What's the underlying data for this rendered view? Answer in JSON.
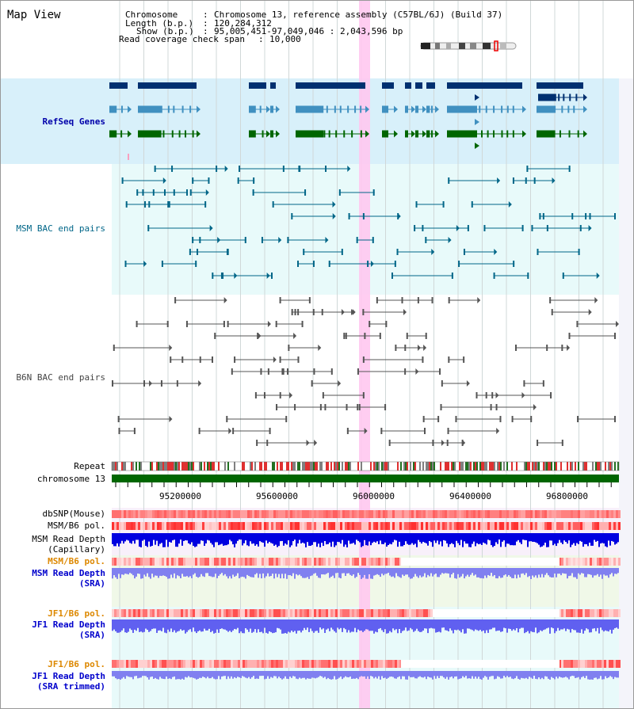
{
  "title": "Map View",
  "info": {
    "chromosome_label": "Chromosome",
    "chromosome_value": "Chromosome 13, reference assembly (C57BL/6J) (Build 37)",
    "length_label": "Length (b.p.)",
    "length_value": "120,284,312",
    "show_label": "Show (b.p.)",
    "show_value": "95,005,451-97,049,046 : 2,043,596 bp",
    "coverage_label": "Read coverage check span",
    "coverage_value": "10,000"
  },
  "tracks": {
    "refseq": "RefSeq Genes",
    "msm_bac": "MSM BAC end pairs",
    "b6n_bac": "B6N BAC end pairs",
    "repeat": "Repeat",
    "chromosome": "chromosome 13",
    "dbsnp": "dbSNP(Mouse)",
    "msm_b6_pol": "MSM/B6 pol.",
    "msm_depth_cap_1": "MSM Read Depth",
    "msm_depth_cap_2": "(Capillary)",
    "msm_b6_pol_2": "MSM/B6 pol.",
    "msm_depth_sra_1": "MSM Read Depth",
    "msm_depth_sra_2": "(SRA)",
    "jf1_b6_pol": "JF1/B6 pol.",
    "jf1_depth_sra_1": "JF1 Read Depth",
    "jf1_depth_sra_2": "(SRA)",
    "jf1_b6_pol_2": "JF1/B6 pol.",
    "jf1_depth_trim_1": "JF1 Read Depth",
    "jf1_depth_trim_2": "(SRA trimmed)"
  },
  "axis_ticks": [
    "95200000",
    "95600000",
    "96000000",
    "96400000",
    "96800000"
  ],
  "colors": {
    "refseq_label": "#0000aa",
    "msm_label": "#006688",
    "b6n_label": "#444444",
    "orange_label": "#dd8800",
    "blue_label": "#0000cc",
    "highlight": "#ffc8f0",
    "chromosome_bar": "#006600"
  }
}
